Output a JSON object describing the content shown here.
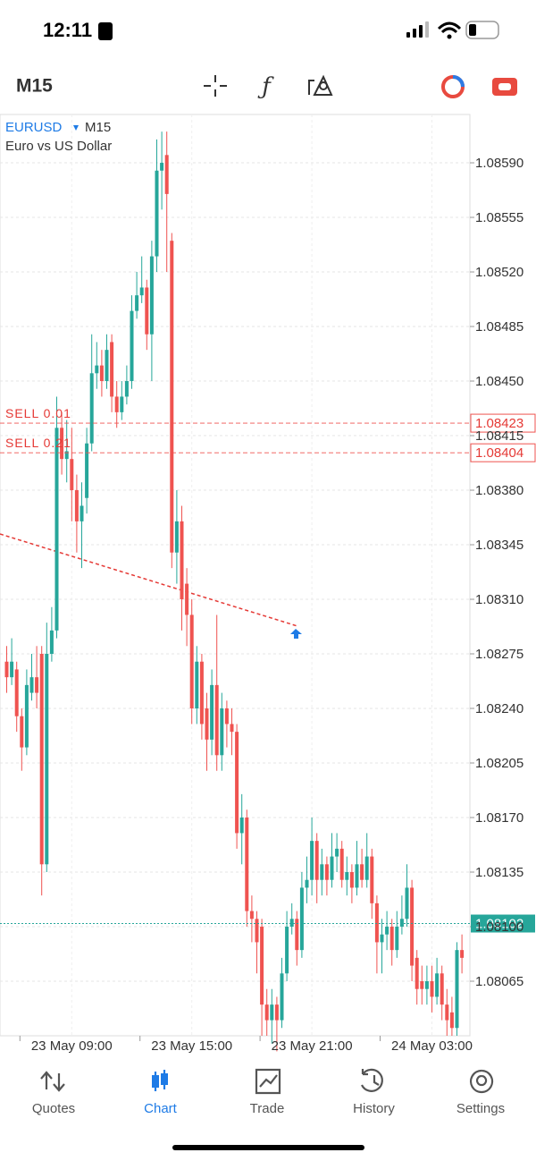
{
  "status_bar": {
    "time": "12:11"
  },
  "toolbar": {
    "timeframe": "M15"
  },
  "chart_data": {
    "type": "candlestick",
    "symbol": "EURUSD",
    "timeframe": "M15",
    "description": "Euro vs US Dollar",
    "up_color": "#26a69a",
    "down_color": "#ef5350",
    "grid": true,
    "categories": [
      null,
      null,
      null,
      null,
      null,
      null,
      null,
      null,
      null,
      null,
      null,
      null,
      null,
      "23 May 09:00",
      null,
      null,
      null,
      null,
      null,
      null,
      null,
      null,
      null,
      null,
      null,
      null,
      null,
      null,
      null,
      null,
      null,
      null,
      null,
      null,
      null,
      null,
      null,
      "23 May 15:00",
      null,
      null,
      null,
      null,
      null,
      null,
      null,
      null,
      null,
      null,
      null,
      null,
      null,
      null,
      null,
      null,
      null,
      null,
      null,
      null,
      null,
      null,
      null,
      "23 May 21:00",
      null,
      null,
      null,
      null,
      null,
      null,
      null,
      null,
      null,
      null,
      null,
      null,
      null,
      null,
      null,
      null,
      null,
      null,
      null,
      null,
      null,
      null,
      null,
      "24 May 03:00",
      null,
      null,
      null,
      null,
      null,
      null
    ],
    "open": [
      1.0827,
      1.0826,
      1.08265,
      1.08235,
      1.08215,
      1.0825,
      1.0826,
      1.08275,
      1.0814,
      1.08275,
      1.0829,
      1.0842,
      1.084,
      1.084,
      1.0838,
      1.0836,
      1.08375,
      1.0841,
      1.08455,
      1.0846,
      1.0845,
      1.08475,
      1.0844,
      1.0843,
      1.0844,
      1.0845,
      1.08495,
      1.08505,
      1.0851,
      1.0848,
      1.0853,
      1.08585,
      1.08595,
      1.0854,
      1.0834,
      1.0836,
      1.0832,
      1.083,
      1.0824,
      1.0827,
      1.0824,
      1.0822,
      1.08255,
      1.0821,
      1.0824,
      1.0823,
      1.08225,
      1.0816,
      1.0817,
      1.0811,
      1.08105,
      1.081,
      1.0805,
      1.0804,
      1.0805,
      1.0804,
      1.0807,
      1.081,
      1.08105,
      1.08085,
      1.08125,
      1.0813,
      1.08155,
      1.0813,
      1.0814,
      1.0813,
      1.08145,
      1.0815,
      1.0813,
      1.08135,
      1.08125,
      1.0814,
      1.0813,
      1.08145,
      1.08115,
      1.0809,
      1.08095,
      1.081,
      1.08085,
      1.081,
      1.08105,
      1.08125,
      1.0808,
      1.08065,
      1.0806,
      1.08065,
      1.08055,
      1.0807,
      1.0805,
      1.08045,
      1.08035,
      1.08085
    ],
    "high": [
      1.0828,
      1.08285,
      1.0827,
      1.0824,
      1.08265,
      1.08275,
      1.0828,
      1.0828,
      1.08295,
      1.08305,
      1.0844,
      1.0843,
      1.08425,
      1.0842,
      1.0839,
      1.08385,
      1.0842,
      1.0848,
      1.08475,
      1.0847,
      1.0848,
      1.0848,
      1.0845,
      1.0845,
      1.0846,
      1.08505,
      1.0852,
      1.0853,
      1.08515,
      1.0854,
      1.08605,
      1.0861,
      1.0861,
      1.08545,
      1.0838,
      1.0837,
      1.0833,
      1.0831,
      1.0828,
      1.08275,
      1.0825,
      1.08265,
      1.083,
      1.0825,
      1.08245,
      1.0824,
      1.0823,
      1.08185,
      1.08175,
      1.0812,
      1.0811,
      1.08105,
      1.0806,
      1.0806,
      1.08055,
      1.0808,
      1.0811,
      1.08115,
      1.0811,
      1.08135,
      1.08145,
      1.0817,
      1.0816,
      1.0815,
      1.08145,
      1.0816,
      1.0816,
      1.08155,
      1.08145,
      1.0814,
      1.08155,
      1.0815,
      1.0816,
      1.0815,
      1.0812,
      1.08105,
      1.0811,
      1.08105,
      1.0811,
      1.0812,
      1.0814,
      1.0813,
      1.08085,
      1.08075,
      1.08075,
      1.08075,
      1.0808,
      1.08075,
      1.0806,
      1.08055,
      1.0809,
      1.08095
    ],
    "low": [
      1.0825,
      1.08255,
      1.08225,
      1.082,
      1.0821,
      1.08245,
      1.0824,
      1.0812,
      1.08135,
      1.0827,
      1.08285,
      1.0839,
      1.08385,
      1.0836,
      1.0834,
      1.0833,
      1.08365,
      1.08405,
      1.08445,
      1.0844,
      1.08445,
      1.0843,
      1.0842,
      1.08425,
      1.08435,
      1.08445,
      1.0849,
      1.085,
      1.0847,
      1.0845,
      1.0852,
      1.0856,
      1.0852,
      1.0833,
      1.0832,
      1.0829,
      1.0828,
      1.0823,
      1.0823,
      1.0822,
      1.082,
      1.0821,
      1.082,
      1.082,
      1.08215,
      1.0821,
      1.0815,
      1.0814,
      1.081,
      1.0809,
      1.0807,
      1.0803,
      1.0803,
      1.08025,
      1.0802,
      1.08035,
      1.08065,
      1.08095,
      1.08075,
      1.0808,
      1.08115,
      1.0812,
      1.08115,
      1.0812,
      1.0812,
      1.08125,
      1.08135,
      1.08125,
      1.0812,
      1.08115,
      1.0812,
      1.08125,
      1.08125,
      1.08105,
      1.0807,
      1.0807,
      1.08085,
      1.08075,
      1.0808,
      1.08095,
      1.081,
      1.08065,
      1.0805,
      1.0805,
      1.0805,
      1.08045,
      1.0805,
      1.0804,
      1.0803,
      1.0803,
      1.0803,
      1.0807
    ],
    "close": [
      1.0826,
      1.0827,
      1.08235,
      1.08215,
      1.08255,
      1.0826,
      1.0825,
      1.0814,
      1.08275,
      1.0829,
      1.0842,
      1.084,
      1.08405,
      1.0838,
      1.0836,
      1.0837,
      1.0841,
      1.08455,
      1.0846,
      1.0845,
      1.0847,
      1.0844,
      1.0843,
      1.0844,
      1.0845,
      1.08495,
      1.08505,
      1.0851,
      1.0848,
      1.0853,
      1.08585,
      1.0859,
      1.0857,
      1.0834,
      1.0836,
      1.0831,
      1.083,
      1.0824,
      1.0827,
      1.0823,
      1.0822,
      1.08255,
      1.0821,
      1.0824,
      1.0823,
      1.08225,
      1.0816,
      1.0817,
      1.0811,
      1.08105,
      1.0809,
      1.0805,
      1.0804,
      1.0805,
      1.0804,
      1.0807,
      1.081,
      1.08105,
      1.08085,
      1.08125,
      1.0813,
      1.08155,
      1.0813,
      1.0814,
      1.0813,
      1.08145,
      1.0815,
      1.0813,
      1.08135,
      1.08125,
      1.0814,
      1.0813,
      1.08145,
      1.08115,
      1.0809,
      1.08095,
      1.081,
      1.08085,
      1.081,
      1.08105,
      1.08125,
      1.08075,
      1.0806,
      1.0806,
      1.08065,
      1.08055,
      1.0807,
      1.0805,
      1.0804,
      1.08035,
      1.08085,
      1.0808
    ],
    "ylim": [
      1.0803,
      1.08621
    ],
    "yticks": [
      {
        "value": 1.0859,
        "label": "1.08590"
      },
      1.08555,
      {
        "value": 1.0852,
        "label": "1.08520"
      },
      1.08485,
      {
        "value": 1.0845,
        "label": "1.08450"
      },
      1.08415,
      {
        "value": 1.0838,
        "label": "1.08380"
      },
      1.08345,
      {
        "value": 1.0831,
        "label": "1.08310"
      },
      1.08275,
      {
        "value": 1.0824,
        "label": "1.08240"
      },
      1.08205,
      {
        "value": 1.0817,
        "label": "1.08170"
      },
      1.08135,
      {
        "value": 1.081,
        "label": "1.08100"
      },
      1.08065
    ],
    "orders": [
      {
        "label": "SELL 0.01",
        "price": 1.08423
      },
      {
        "label": "SELL 0.21",
        "price": 1.08404
      }
    ],
    "current_price": 1.08102
  },
  "tabs": [
    "Quotes",
    "Chart",
    "Trade",
    "History",
    "Settings"
  ]
}
